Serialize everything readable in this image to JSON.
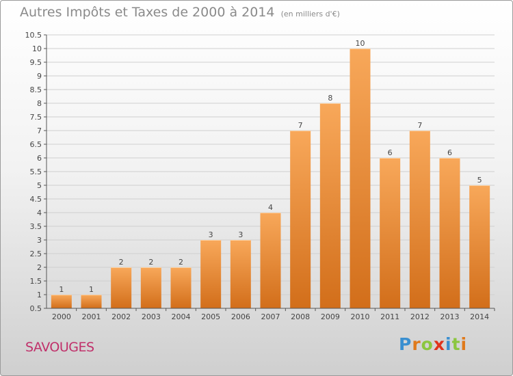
{
  "title": "Autres Impôts et Taxes de 2000 à 2014",
  "subtitle": "(en milliers d'€)",
  "commune": "SAVOUGES",
  "logo": {
    "letters": [
      "P",
      "r",
      "o",
      "x",
      "i",
      "t",
      "i"
    ],
    "colors": [
      "#3a8fd0",
      "#e07a1c",
      "#8cc63f",
      "#e0331c",
      "#3a8fd0",
      "#8cc63f",
      "#e07a1c"
    ]
  },
  "colors": {
    "bar_light": "#f8a85a",
    "bar_dark": "#d26e1a",
    "grid": "#cfcfcf",
    "commune": "#c0306a"
  },
  "chart_data": {
    "type": "bar",
    "categories": [
      "2000",
      "2001",
      "2002",
      "2003",
      "2004",
      "2005",
      "2006",
      "2007",
      "2008",
      "2009",
      "2010",
      "2011",
      "2012",
      "2013",
      "2014"
    ],
    "values": [
      1,
      1,
      2,
      2,
      2,
      3,
      3,
      4,
      7,
      8,
      10,
      6,
      7,
      6,
      5
    ],
    "data_labels": [
      "1",
      "1",
      "2",
      "2",
      "2",
      "3",
      "3",
      "4",
      "7",
      "8",
      "10",
      "6",
      "7",
      "6",
      "5"
    ],
    "title": "Autres Impôts et Taxes de 2000 à 2014",
    "subtitle": "(en milliers d'€)",
    "xlabel": "",
    "ylabel": "",
    "ylim": [
      0.5,
      10.5
    ],
    "yticks": [
      "0.5",
      "1",
      "1.5",
      "2",
      "2.5",
      "3",
      "3.5",
      "4",
      "4.5",
      "5",
      "5.5",
      "6",
      "6.5",
      "7",
      "7.5",
      "8",
      "8.5",
      "9",
      "9.5",
      "10",
      "10.5"
    ],
    "grid": "horizontal",
    "legend": "none"
  }
}
